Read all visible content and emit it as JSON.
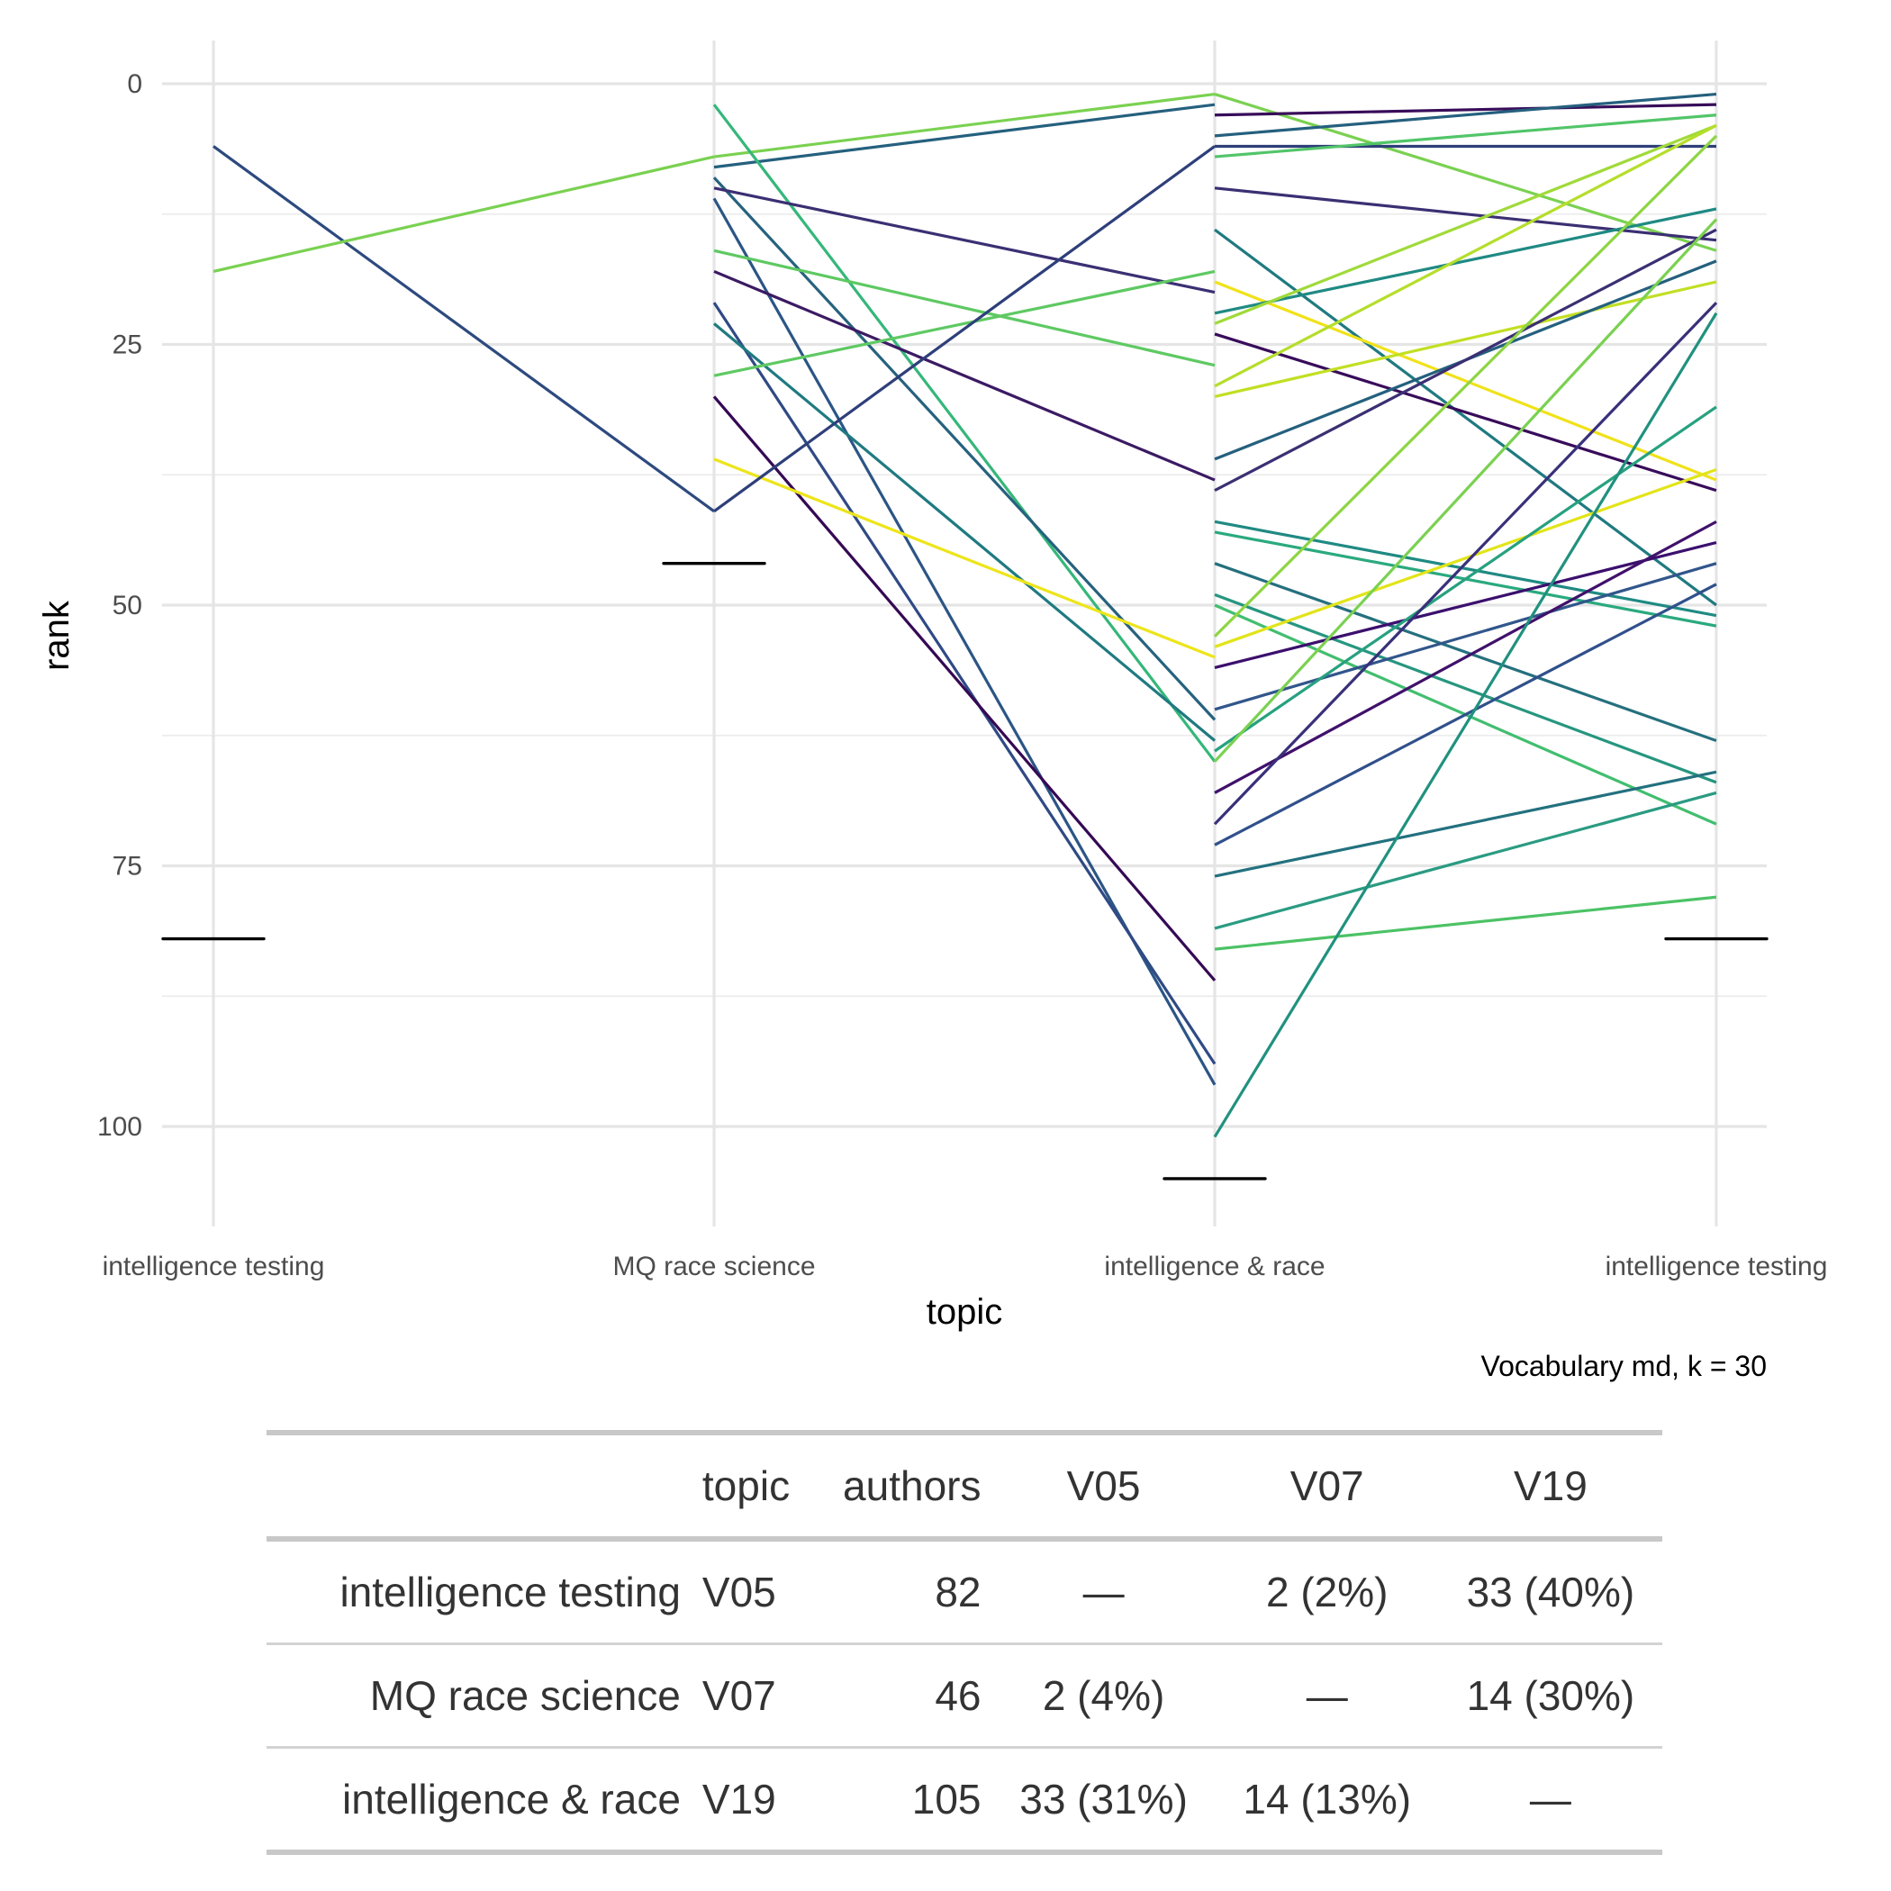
{
  "chart_data": {
    "type": "line",
    "subtype": "parallel-coordinates",
    "title": "",
    "xlabel": "topic",
    "ylabel": "rank",
    "caption": "Vocabulary md, k = 30",
    "x_categories": [
      "intelligence testing",
      "MQ race science",
      "intelligence & race",
      "intelligence testing"
    ],
    "y_ticks": [
      0,
      25,
      50,
      75,
      100
    ],
    "ylim": [
      105,
      -4
    ],
    "y_reversed": true,
    "grid": true,
    "medians": [
      {
        "axis": 0,
        "value": 82
      },
      {
        "axis": 1,
        "value": 46
      },
      {
        "axis": 2,
        "value": 105
      },
      {
        "axis": 3,
        "value": 82
      }
    ],
    "segments": [
      {
        "from_axis": 0,
        "to_axis": 1,
        "from": 6,
        "to": 41,
        "color": "#2d4a7f"
      },
      {
        "from_axis": 0,
        "to_axis": 1,
        "from": 18,
        "to": 7,
        "color": "#7ad151"
      },
      {
        "from_axis": 1,
        "to_axis": 2,
        "from": 7,
        "to": 1,
        "color": "#7ad151"
      },
      {
        "from_axis": 1,
        "to_axis": 2,
        "from": 8,
        "to": 2,
        "color": "#25607e"
      },
      {
        "from_axis": 1,
        "to_axis": 2,
        "from": 2,
        "to": 65,
        "color": "#35b779"
      },
      {
        "from_axis": 1,
        "to_axis": 2,
        "from": 9,
        "to": 61,
        "color": "#26627e"
      },
      {
        "from_axis": 1,
        "to_axis": 2,
        "from": 10,
        "to": 20,
        "color": "#3b2f73"
      },
      {
        "from_axis": 1,
        "to_axis": 2,
        "from": 11,
        "to": 96,
        "color": "#2b5585"
      },
      {
        "from_axis": 1,
        "to_axis": 2,
        "from": 16,
        "to": 27,
        "color": "#5ec962"
      },
      {
        "from_axis": 1,
        "to_axis": 2,
        "from": 18,
        "to": 38,
        "color": "#3b1a63"
      },
      {
        "from_axis": 1,
        "to_axis": 2,
        "from": 21,
        "to": 94,
        "color": "#2f4a84"
      },
      {
        "from_axis": 1,
        "to_axis": 2,
        "from": 23,
        "to": 63,
        "color": "#1f7a80"
      },
      {
        "from_axis": 1,
        "to_axis": 2,
        "from": 28,
        "to": 18,
        "color": "#5ec962"
      },
      {
        "from_axis": 1,
        "to_axis": 2,
        "from": 30,
        "to": 86,
        "color": "#350954"
      },
      {
        "from_axis": 1,
        "to_axis": 2,
        "from": 36,
        "to": 55,
        "color": "#ede51b"
      },
      {
        "from_axis": 1,
        "to_axis": 2,
        "from": 41,
        "to": 6,
        "color": "#2e3f7a"
      },
      {
        "from_axis": 2,
        "to_axis": 3,
        "from": 1,
        "to": 16,
        "color": "#7ad151"
      },
      {
        "from_axis": 2,
        "to_axis": 3,
        "from": 3,
        "to": 2,
        "color": "#380c5a"
      },
      {
        "from_axis": 2,
        "to_axis": 3,
        "from": 5,
        "to": 1,
        "color": "#25607e"
      },
      {
        "from_axis": 2,
        "to_axis": 3,
        "from": 6,
        "to": 6,
        "color": "#2e3f7a"
      },
      {
        "from_axis": 2,
        "to_axis": 3,
        "from": 7,
        "to": 3,
        "color": "#52c569"
      },
      {
        "from_axis": 2,
        "to_axis": 3,
        "from": 10,
        "to": 15,
        "color": "#3b2f73"
      },
      {
        "from_axis": 2,
        "to_axis": 3,
        "from": 14,
        "to": 50,
        "color": "#1f7a80"
      },
      {
        "from_axis": 2,
        "to_axis": 3,
        "from": 19,
        "to": 38,
        "color": "#f0e21a"
      },
      {
        "from_axis": 2,
        "to_axis": 3,
        "from": 22,
        "to": 12,
        "color": "#1f8a83"
      },
      {
        "from_axis": 2,
        "to_axis": 3,
        "from": 23,
        "to": 4,
        "color": "#a0da39"
      },
      {
        "from_axis": 2,
        "to_axis": 3,
        "from": 24,
        "to": 39,
        "color": "#380c5a"
      },
      {
        "from_axis": 2,
        "to_axis": 3,
        "from": 29,
        "to": 4,
        "color": "#b5de2b"
      },
      {
        "from_axis": 2,
        "to_axis": 3,
        "from": 30,
        "to": 19,
        "color": "#c2df23"
      },
      {
        "from_axis": 2,
        "to_axis": 3,
        "from": 36,
        "to": 17,
        "color": "#25607e"
      },
      {
        "from_axis": 2,
        "to_axis": 3,
        "from": 39,
        "to": 14,
        "color": "#3b2f73"
      },
      {
        "from_axis": 2,
        "to_axis": 3,
        "from": 42,
        "to": 51,
        "color": "#1f8a83"
      },
      {
        "from_axis": 2,
        "to_axis": 3,
        "from": 43,
        "to": 52,
        "color": "#2aa97f"
      },
      {
        "from_axis": 2,
        "to_axis": 3,
        "from": 46,
        "to": 63,
        "color": "#25707e"
      },
      {
        "from_axis": 2,
        "to_axis": 3,
        "from": 49,
        "to": 67,
        "color": "#26967f"
      },
      {
        "from_axis": 2,
        "to_axis": 3,
        "from": 50,
        "to": 71,
        "color": "#42be70"
      },
      {
        "from_axis": 2,
        "to_axis": 3,
        "from": 53,
        "to": 5,
        "color": "#8ed542"
      },
      {
        "from_axis": 2,
        "to_axis": 3,
        "from": 54,
        "to": 37,
        "color": "#e2e418"
      },
      {
        "from_axis": 2,
        "to_axis": 3,
        "from": 56,
        "to": 44,
        "color": "#3b0f6e"
      },
      {
        "from_axis": 2,
        "to_axis": 3,
        "from": 60,
        "to": 46,
        "color": "#31568b"
      },
      {
        "from_axis": 2,
        "to_axis": 3,
        "from": 64,
        "to": 31,
        "color": "#27a17f"
      },
      {
        "from_axis": 2,
        "to_axis": 3,
        "from": 65,
        "to": 13,
        "color": "#7ad151"
      },
      {
        "from_axis": 2,
        "to_axis": 3,
        "from": 68,
        "to": 42,
        "color": "#40116b"
      },
      {
        "from_axis": 2,
        "to_axis": 3,
        "from": 71,
        "to": 21,
        "color": "#39307a"
      },
      {
        "from_axis": 2,
        "to_axis": 3,
        "from": 73,
        "to": 48,
        "color": "#30508b"
      },
      {
        "from_axis": 2,
        "to_axis": 3,
        "from": 76,
        "to": 66,
        "color": "#23717f"
      },
      {
        "from_axis": 2,
        "to_axis": 3,
        "from": 81,
        "to": 68,
        "color": "#2a9b82"
      },
      {
        "from_axis": 2,
        "to_axis": 3,
        "from": 83,
        "to": 78,
        "color": "#4cc265"
      },
      {
        "from_axis": 2,
        "to_axis": 3,
        "from": 101,
        "to": 22,
        "color": "#21917f"
      }
    ]
  },
  "table": {
    "headers": [
      "",
      "topic",
      "authors",
      "V05",
      "V07",
      "V19"
    ],
    "rows": [
      {
        "name": "intelligence testing",
        "topic": "V05",
        "authors": "82",
        "v05": "—",
        "v07": "2 (2%)",
        "v19": "33 (40%)"
      },
      {
        "name": "MQ race science",
        "topic": "V07",
        "authors": "46",
        "v05": "2 (4%)",
        "v07": "—",
        "v19": "14 (30%)"
      },
      {
        "name": "intelligence & race",
        "topic": "V19",
        "authors": "105",
        "v05": "33 (31%)",
        "v07": "14 (13%)",
        "v19": "—"
      }
    ]
  }
}
